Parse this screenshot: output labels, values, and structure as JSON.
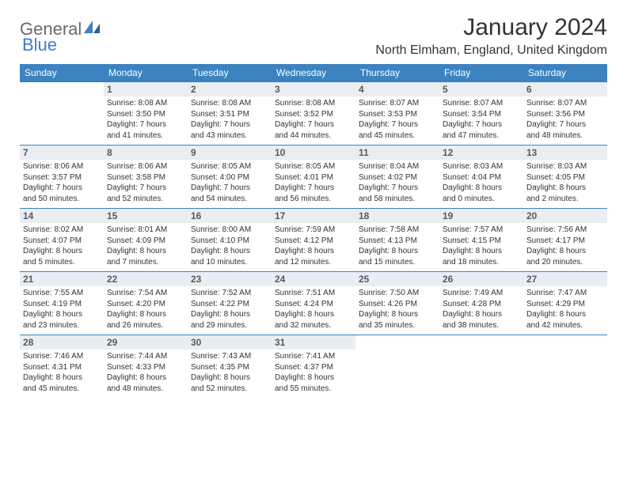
{
  "brand": {
    "part1": "General",
    "part2": "Blue"
  },
  "title": "January 2024",
  "location": "North Elmham, England, United Kingdom",
  "colors": {
    "header_bg": "#3b83c0",
    "header_text": "#ffffff",
    "daynum_bg": "#e9eef3",
    "row_border": "#3b83c0",
    "title_color": "#333333",
    "logo_gray": "#6a6a6a",
    "logo_blue": "#3b7fc4"
  },
  "weekdays": [
    "Sunday",
    "Monday",
    "Tuesday",
    "Wednesday",
    "Thursday",
    "Friday",
    "Saturday"
  ],
  "weeks": [
    [
      {
        "empty": true
      },
      {
        "n": "1",
        "sr": "Sunrise: 8:08 AM",
        "ss": "Sunset: 3:50 PM",
        "d1": "Daylight: 7 hours",
        "d2": "and 41 minutes."
      },
      {
        "n": "2",
        "sr": "Sunrise: 8:08 AM",
        "ss": "Sunset: 3:51 PM",
        "d1": "Daylight: 7 hours",
        "d2": "and 43 minutes."
      },
      {
        "n": "3",
        "sr": "Sunrise: 8:08 AM",
        "ss": "Sunset: 3:52 PM",
        "d1": "Daylight: 7 hours",
        "d2": "and 44 minutes."
      },
      {
        "n": "4",
        "sr": "Sunrise: 8:07 AM",
        "ss": "Sunset: 3:53 PM",
        "d1": "Daylight: 7 hours",
        "d2": "and 45 minutes."
      },
      {
        "n": "5",
        "sr": "Sunrise: 8:07 AM",
        "ss": "Sunset: 3:54 PM",
        "d1": "Daylight: 7 hours",
        "d2": "and 47 minutes."
      },
      {
        "n": "6",
        "sr": "Sunrise: 8:07 AM",
        "ss": "Sunset: 3:56 PM",
        "d1": "Daylight: 7 hours",
        "d2": "and 48 minutes."
      }
    ],
    [
      {
        "n": "7",
        "sr": "Sunrise: 8:06 AM",
        "ss": "Sunset: 3:57 PM",
        "d1": "Daylight: 7 hours",
        "d2": "and 50 minutes."
      },
      {
        "n": "8",
        "sr": "Sunrise: 8:06 AM",
        "ss": "Sunset: 3:58 PM",
        "d1": "Daylight: 7 hours",
        "d2": "and 52 minutes."
      },
      {
        "n": "9",
        "sr": "Sunrise: 8:05 AM",
        "ss": "Sunset: 4:00 PM",
        "d1": "Daylight: 7 hours",
        "d2": "and 54 minutes."
      },
      {
        "n": "10",
        "sr": "Sunrise: 8:05 AM",
        "ss": "Sunset: 4:01 PM",
        "d1": "Daylight: 7 hours",
        "d2": "and 56 minutes."
      },
      {
        "n": "11",
        "sr": "Sunrise: 8:04 AM",
        "ss": "Sunset: 4:02 PM",
        "d1": "Daylight: 7 hours",
        "d2": "and 58 minutes."
      },
      {
        "n": "12",
        "sr": "Sunrise: 8:03 AM",
        "ss": "Sunset: 4:04 PM",
        "d1": "Daylight: 8 hours",
        "d2": "and 0 minutes."
      },
      {
        "n": "13",
        "sr": "Sunrise: 8:03 AM",
        "ss": "Sunset: 4:05 PM",
        "d1": "Daylight: 8 hours",
        "d2": "and 2 minutes."
      }
    ],
    [
      {
        "n": "14",
        "sr": "Sunrise: 8:02 AM",
        "ss": "Sunset: 4:07 PM",
        "d1": "Daylight: 8 hours",
        "d2": "and 5 minutes."
      },
      {
        "n": "15",
        "sr": "Sunrise: 8:01 AM",
        "ss": "Sunset: 4:09 PM",
        "d1": "Daylight: 8 hours",
        "d2": "and 7 minutes."
      },
      {
        "n": "16",
        "sr": "Sunrise: 8:00 AM",
        "ss": "Sunset: 4:10 PM",
        "d1": "Daylight: 8 hours",
        "d2": "and 10 minutes."
      },
      {
        "n": "17",
        "sr": "Sunrise: 7:59 AM",
        "ss": "Sunset: 4:12 PM",
        "d1": "Daylight: 8 hours",
        "d2": "and 12 minutes."
      },
      {
        "n": "18",
        "sr": "Sunrise: 7:58 AM",
        "ss": "Sunset: 4:13 PM",
        "d1": "Daylight: 8 hours",
        "d2": "and 15 minutes."
      },
      {
        "n": "19",
        "sr": "Sunrise: 7:57 AM",
        "ss": "Sunset: 4:15 PM",
        "d1": "Daylight: 8 hours",
        "d2": "and 18 minutes."
      },
      {
        "n": "20",
        "sr": "Sunrise: 7:56 AM",
        "ss": "Sunset: 4:17 PM",
        "d1": "Daylight: 8 hours",
        "d2": "and 20 minutes."
      }
    ],
    [
      {
        "n": "21",
        "sr": "Sunrise: 7:55 AM",
        "ss": "Sunset: 4:19 PM",
        "d1": "Daylight: 8 hours",
        "d2": "and 23 minutes."
      },
      {
        "n": "22",
        "sr": "Sunrise: 7:54 AM",
        "ss": "Sunset: 4:20 PM",
        "d1": "Daylight: 8 hours",
        "d2": "and 26 minutes."
      },
      {
        "n": "23",
        "sr": "Sunrise: 7:52 AM",
        "ss": "Sunset: 4:22 PM",
        "d1": "Daylight: 8 hours",
        "d2": "and 29 minutes."
      },
      {
        "n": "24",
        "sr": "Sunrise: 7:51 AM",
        "ss": "Sunset: 4:24 PM",
        "d1": "Daylight: 8 hours",
        "d2": "and 32 minutes."
      },
      {
        "n": "25",
        "sr": "Sunrise: 7:50 AM",
        "ss": "Sunset: 4:26 PM",
        "d1": "Daylight: 8 hours",
        "d2": "and 35 minutes."
      },
      {
        "n": "26",
        "sr": "Sunrise: 7:49 AM",
        "ss": "Sunset: 4:28 PM",
        "d1": "Daylight: 8 hours",
        "d2": "and 38 minutes."
      },
      {
        "n": "27",
        "sr": "Sunrise: 7:47 AM",
        "ss": "Sunset: 4:29 PM",
        "d1": "Daylight: 8 hours",
        "d2": "and 42 minutes."
      }
    ],
    [
      {
        "n": "28",
        "sr": "Sunrise: 7:46 AM",
        "ss": "Sunset: 4:31 PM",
        "d1": "Daylight: 8 hours",
        "d2": "and 45 minutes."
      },
      {
        "n": "29",
        "sr": "Sunrise: 7:44 AM",
        "ss": "Sunset: 4:33 PM",
        "d1": "Daylight: 8 hours",
        "d2": "and 48 minutes."
      },
      {
        "n": "30",
        "sr": "Sunrise: 7:43 AM",
        "ss": "Sunset: 4:35 PM",
        "d1": "Daylight: 8 hours",
        "d2": "and 52 minutes."
      },
      {
        "n": "31",
        "sr": "Sunrise: 7:41 AM",
        "ss": "Sunset: 4:37 PM",
        "d1": "Daylight: 8 hours",
        "d2": "and 55 minutes."
      },
      {
        "empty": true
      },
      {
        "empty": true
      },
      {
        "empty": true
      }
    ]
  ]
}
